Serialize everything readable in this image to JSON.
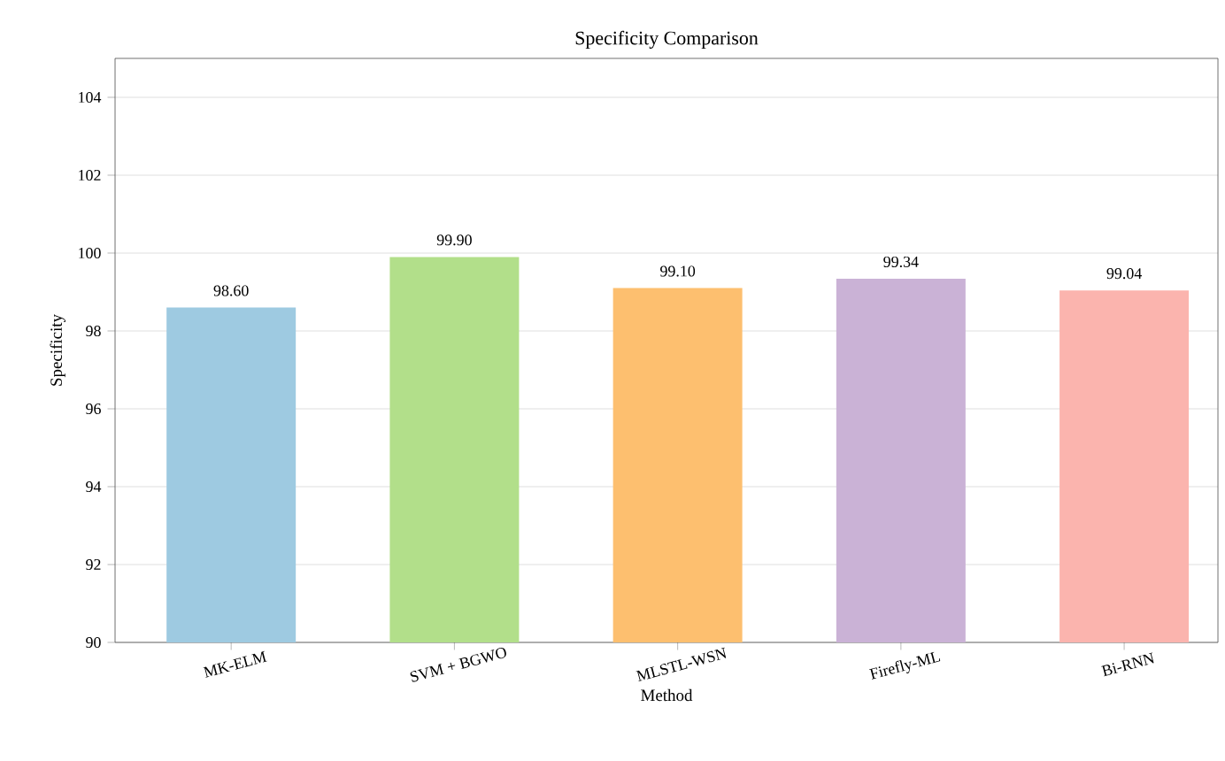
{
  "chart_data": {
    "type": "bar",
    "title": "Specificity Comparison",
    "xlabel": "Method",
    "ylabel": "Specificity",
    "categories": [
      "MK-ELM",
      "SVM + BGWO",
      "MLSTL-WSN",
      "Firefly-ML",
      "Bi-RNN"
    ],
    "values": [
      98.6,
      99.9,
      99.1,
      99.34,
      99.04
    ],
    "value_labels": [
      "98.60",
      "99.90",
      "99.10",
      "99.34",
      "99.04"
    ],
    "colors": [
      "#9ecae1",
      "#b2df8a",
      "#fdbf6f",
      "#cab2d6",
      "#fbb4ae"
    ],
    "ylim": [
      90,
      105
    ],
    "yticks": [
      90,
      92,
      94,
      96,
      98,
      100,
      102,
      104
    ],
    "grid": "y"
  }
}
